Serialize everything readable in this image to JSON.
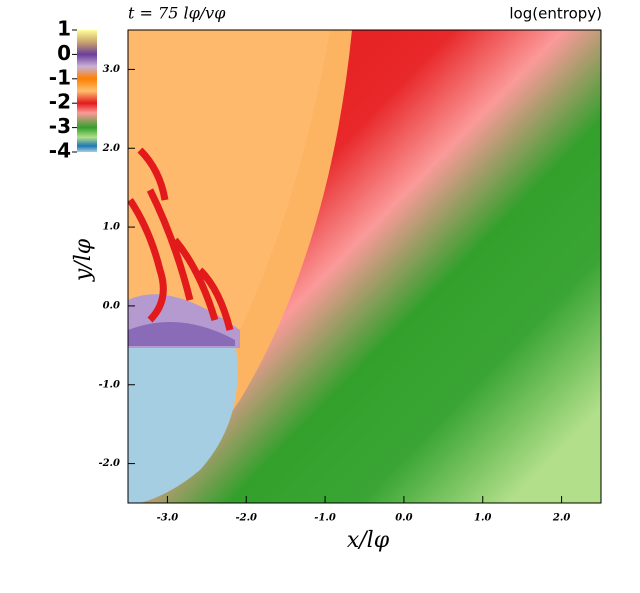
{
  "chart_data": {
    "type": "heatmap",
    "title": "t = 75 lφ/vφ",
    "colorbar_label": "log(entropy)",
    "x_label": "x/lφ",
    "y_label": "y/lφ",
    "xlim": [
      -3.5,
      2.5
    ],
    "ylim": [
      -2.5,
      3.5
    ],
    "xticks": [
      {
        "value": -3,
        "label": "-3.0"
      },
      {
        "value": -2,
        "label": "-2.0"
      },
      {
        "value": -1,
        "label": "-1.0"
      },
      {
        "value": 0,
        "label": "0.0"
      },
      {
        "value": 1,
        "label": "1.0"
      },
      {
        "value": 2,
        "label": "2.0"
      }
    ],
    "yticks": [
      {
        "value": -2,
        "label": "-2.0"
      },
      {
        "value": -1,
        "label": "-1.0"
      },
      {
        "value": 0,
        "label": "0.0"
      },
      {
        "value": 1,
        "label": "1.0"
      },
      {
        "value": 2,
        "label": "2.0"
      },
      {
        "value": 3,
        "label": "3.0"
      }
    ],
    "colorbar_lim": [
      -4,
      1
    ],
    "colorbar_ticks": [
      1,
      0,
      -1,
      -2,
      -3,
      -4
    ]
  }
}
